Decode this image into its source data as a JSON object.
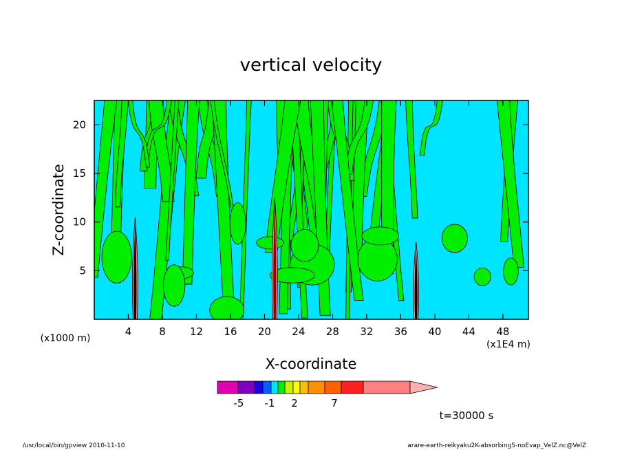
{
  "chart_data": {
    "type": "heatmap",
    "title": "vertical velocity",
    "xlabel": "X-coordinate",
    "ylabel": "Z-coordinate",
    "x_unit": "(x1E4 m)",
    "y_unit": "(x1000 m)",
    "xlim": [
      0,
      51
    ],
    "ylim": [
      0,
      22.5
    ],
    "x_ticks": [
      4,
      8,
      12,
      16,
      20,
      24,
      28,
      32,
      36,
      40,
      44,
      48
    ],
    "y_ticks": [
      5,
      10,
      15,
      20
    ],
    "background_color": "#00e5ff",
    "positive_color": "#00ee00",
    "updraft_cores": [
      {
        "x": 4.8,
        "z_top": 10.5,
        "color": "#000000"
      },
      {
        "x": 21.2,
        "z_top": 12.5,
        "color": "#8b0000"
      },
      {
        "x": 37.8,
        "z_top": 8.0,
        "color": "#000000"
      }
    ],
    "colorbar": {
      "colors": [
        "#e000b0",
        "#8000c0",
        "#2000e0",
        "#0060ff",
        "#00e5ff",
        "#00ee00",
        "#c8f000",
        "#ffff00",
        "#ffc000",
        "#ff9000",
        "#ff6000",
        "#ff2020",
        "#ff8080",
        "#ffb0b0"
      ],
      "tick_labels": [
        "-5",
        "-1",
        "2",
        "7"
      ]
    },
    "time_label": "t=30000 s"
  },
  "footer": {
    "left": "/usr/local/bin/gpview  2010-11-10",
    "right": "arare-earth-reikyaku2K-absorbing5-noEvap_VelZ.nc@VelZ"
  }
}
